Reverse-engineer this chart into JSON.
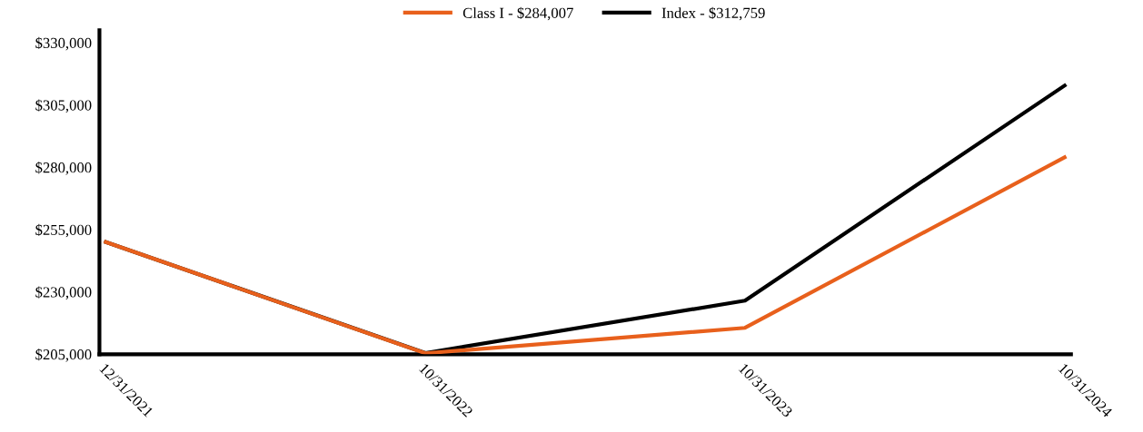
{
  "chart_data": {
    "type": "line",
    "categories": [
      "12/31/2021",
      "10/31/2022",
      "10/31/2023",
      "10/31/2024"
    ],
    "series": [
      {
        "name": "Class I - $284,007",
        "color": "#e8601c",
        "values": [
          250000,
          205400,
          215600,
          284000
        ]
      },
      {
        "name": "Index - $312,759",
        "color": "#000000",
        "values": [
          250000,
          205500,
          226500,
          312800
        ]
      }
    ],
    "ylim": [
      205000,
      335000
    ],
    "yticks": [
      {
        "value": 205000,
        "label": "$205,000"
      },
      {
        "value": 230000,
        "label": "$230,000"
      },
      {
        "value": 255000,
        "label": "$255,000"
      },
      {
        "value": 280000,
        "label": "$280,000"
      },
      {
        "value": 305000,
        "label": "$305,000"
      },
      {
        "value": 330000,
        "label": "$330,000"
      }
    ],
    "grid": false,
    "legend": "top",
    "marker": "none",
    "line_style": "solid"
  }
}
